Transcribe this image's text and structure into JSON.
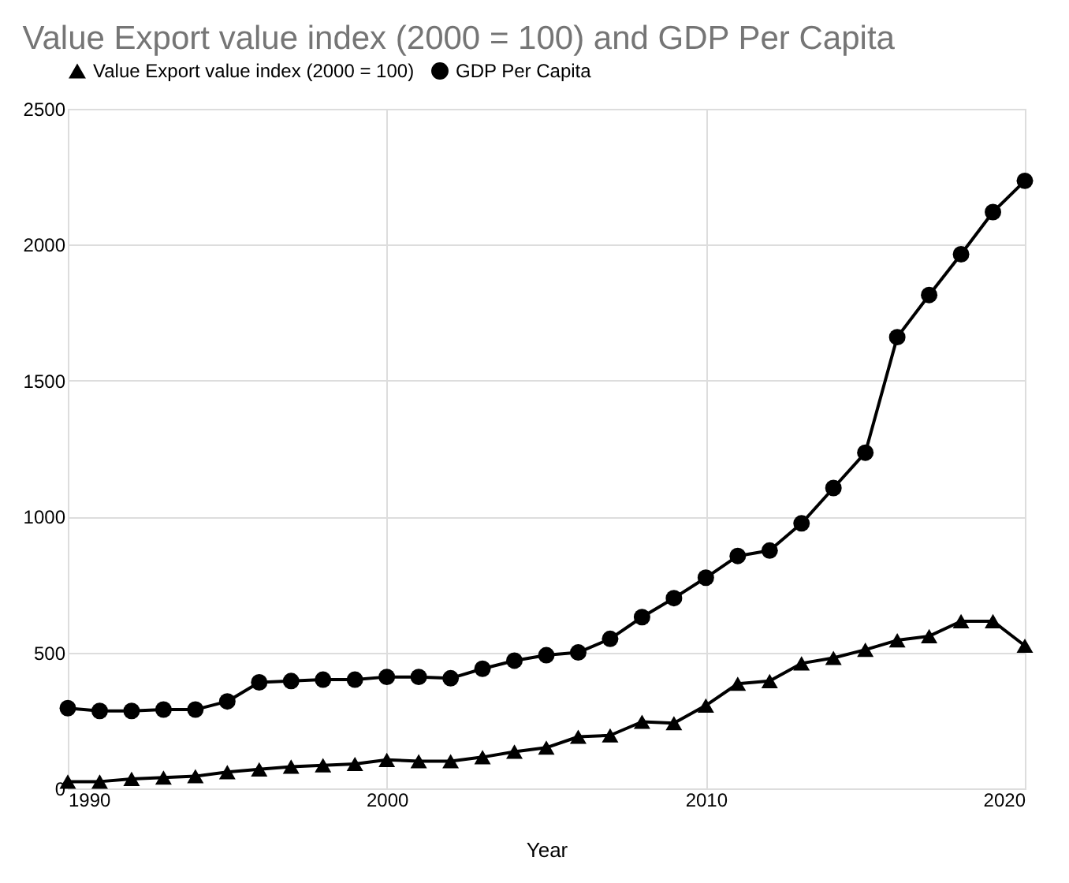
{
  "chart_data": {
    "type": "line",
    "title": "Value Export value index (2000 = 100) and GDP Per Capita",
    "xlabel": "Year",
    "x": [
      1990,
      1991,
      1992,
      1993,
      1994,
      1995,
      1996,
      1997,
      1998,
      1999,
      2000,
      2001,
      2002,
      2003,
      2004,
      2005,
      2006,
      2007,
      2008,
      2009,
      2010,
      2011,
      2012,
      2013,
      2014,
      2015,
      2016,
      2017,
      2018,
      2019,
      2020
    ],
    "series": [
      {
        "name": "Value Export value index (2000 = 100)",
        "color": "#000000",
        "marker": "triangle",
        "values": [
          25,
          25,
          35,
          40,
          45,
          60,
          70,
          80,
          85,
          90,
          105,
          100,
          100,
          115,
          135,
          150,
          190,
          195,
          245,
          240,
          305,
          385,
          395,
          460,
          480,
          510,
          545,
          560,
          615,
          615,
          525
        ]
      },
      {
        "name": "GDP Per Capita",
        "color": "#000000",
        "marker": "circle",
        "values": [
          295,
          285,
          285,
          290,
          290,
          320,
          390,
          395,
          400,
          400,
          410,
          410,
          405,
          440,
          470,
          490,
          500,
          550,
          630,
          700,
          775,
          855,
          875,
          975,
          1105,
          1235,
          1660,
          1815,
          1965,
          2120,
          2235
        ]
      }
    ],
    "xlim": [
      1990,
      2020
    ],
    "xticks": [
      1990,
      2000,
      2010,
      2020
    ],
    "ylim": [
      0,
      2500
    ],
    "yticks": [
      0,
      500,
      1000,
      1500,
      2000,
      2500
    ],
    "grid": true,
    "legend": "top",
    "line_style": "solid"
  }
}
